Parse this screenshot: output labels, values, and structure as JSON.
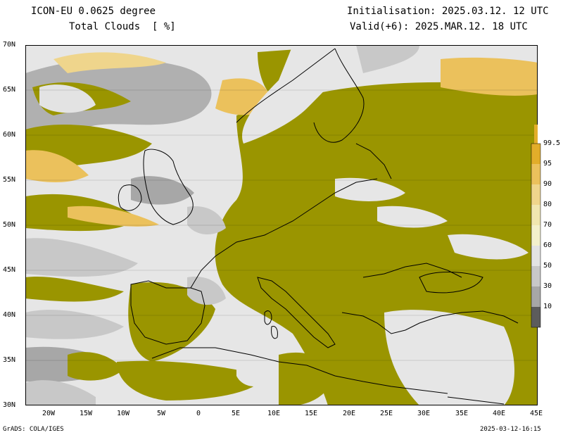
{
  "header": {
    "model": "ICON-EU 0.0625 degree",
    "field": "Total Clouds  [ %]",
    "init": "Initialisation: 2025.03.12. 12 UTC",
    "valid": "Valid(+6): 2025.MAR.12. 18 UTC"
  },
  "lat_labels": [
    "70N",
    "65N",
    "60N",
    "55N",
    "50N",
    "45N",
    "40N",
    "35N",
    "30N"
  ],
  "lon_labels": [
    "20W",
    "15W",
    "10W",
    "5W",
    "0",
    "5E",
    "10E",
    "15E",
    "20E",
    "25E",
    "30E",
    "35E",
    "40E",
    "45E"
  ],
  "colorbar": {
    "labels": [
      "99.5",
      "95",
      "90",
      "80",
      "70",
      "60",
      "50",
      "30",
      "10"
    ],
    "colors": [
      "#e2ad2a",
      "#ebc15c",
      "#efd58c",
      "#f0e6b0",
      "#f3f0cc",
      "#e3e3e3",
      "#c8c8c8",
      "#a7a7a7",
      "#828282",
      "#5c5c5c"
    ]
  },
  "palette": {
    "overcast": "#9a9500",
    "sea_clear": "#e6e6e6",
    "coast": "#000000"
  },
  "footer": {
    "left": "GrADS: COLA/IGES",
    "right": "2025-03-12-16:15"
  }
}
